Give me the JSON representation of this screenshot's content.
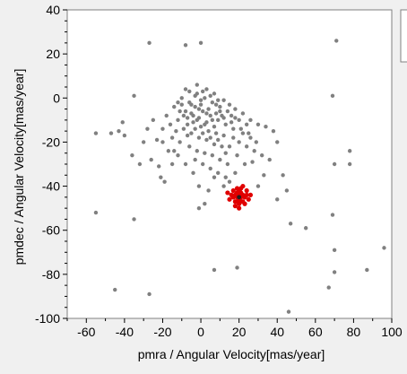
{
  "chart_data": {
    "type": "scatter",
    "title": "",
    "xlabel": "pmra / Angular Velocity[mas/year]",
    "ylabel": "pmdec / Angular Velocity[mas/year]",
    "xlim": [
      -70,
      100
    ],
    "ylim": [
      -100,
      40
    ],
    "xticks": [
      -60,
      -40,
      -20,
      0,
      20,
      40,
      60,
      80,
      100
    ],
    "yticks": [
      -100,
      -80,
      -60,
      -40,
      -20,
      0,
      20,
      40
    ],
    "xtick_labels": [
      "-60",
      "-40",
      "-20",
      "0",
      "20",
      "40",
      "60",
      "80",
      "100"
    ],
    "ytick_labels": [
      "-100",
      "-80",
      "-60",
      "-40",
      "-20",
      "0",
      "20",
      "40"
    ],
    "grid": false,
    "colors": {
      "field": "#808080",
      "cluster": "#e00000",
      "cluster_center": "#202020",
      "plot_bg": "#ffffff",
      "page_bg": "#f0f0f0"
    },
    "series": [
      {
        "points": [
          [
            -27,
            25
          ],
          [
            -8,
            24
          ],
          [
            0,
            25
          ],
          [
            71,
            26
          ],
          [
            -35,
            1
          ],
          [
            -41,
            -11
          ],
          [
            -43,
            -15
          ],
          [
            -40,
            -17
          ],
          [
            -47,
            -16
          ],
          [
            -55,
            -16
          ],
          [
            -36,
            -26
          ],
          [
            -32,
            -30
          ],
          [
            -23,
            -19
          ],
          [
            -22,
            -31
          ],
          [
            -21,
            -36
          ],
          [
            -55,
            -52
          ],
          [
            -35,
            -55
          ],
          [
            -45,
            -87
          ],
          [
            -27,
            -89
          ],
          [
            7,
            -78
          ],
          [
            19,
            -77
          ],
          [
            46,
            -97
          ],
          [
            -1,
            -50
          ],
          [
            2,
            -48
          ],
          [
            27,
            -29
          ],
          [
            33,
            -35
          ],
          [
            43,
            -35
          ],
          [
            45,
            -42
          ],
          [
            40,
            -46
          ],
          [
            47,
            -57
          ],
          [
            55,
            -59
          ],
          [
            69,
            -53
          ],
          [
            70,
            -69
          ],
          [
            70,
            -79
          ],
          [
            67,
            -86
          ],
          [
            87,
            -78
          ],
          [
            96,
            -68
          ],
          [
            78,
            -30
          ],
          [
            78,
            -24
          ],
          [
            70,
            -30
          ],
          [
            69,
            1
          ],
          [
            -20,
            -20
          ],
          [
            -15,
            -18
          ],
          [
            -12,
            -10
          ],
          [
            -18,
            -8
          ],
          [
            -8,
            4
          ],
          [
            -2,
            6
          ],
          [
            3,
            4
          ],
          [
            7,
            2
          ],
          [
            12,
            -1
          ],
          [
            15,
            -3
          ],
          [
            18,
            -5
          ],
          [
            22,
            -7
          ],
          [
            26,
            -10
          ],
          [
            30,
            -12
          ],
          [
            34,
            -13
          ],
          [
            38,
            -15
          ],
          [
            -10,
            0
          ],
          [
            -6,
            -2
          ],
          [
            -3,
            -4
          ],
          [
            1,
            -6
          ],
          [
            5,
            -8
          ],
          [
            9,
            -10
          ],
          [
            13,
            -12
          ],
          [
            17,
            -14
          ],
          [
            -14,
            -4
          ],
          [
            -11,
            -6
          ],
          [
            -7,
            -9
          ],
          [
            -4,
            -11
          ],
          [
            0,
            -13
          ],
          [
            4,
            -15
          ],
          [
            8,
            -16
          ],
          [
            12,
            -17
          ],
          [
            -9,
            -14
          ],
          [
            -5,
            -16
          ],
          [
            -1,
            -18
          ],
          [
            3,
            -19
          ],
          [
            7,
            -21
          ],
          [
            11,
            -22
          ],
          [
            -6,
            -22
          ],
          [
            -2,
            -24
          ],
          [
            2,
            -25
          ],
          [
            6,
            -26
          ],
          [
            10,
            -28
          ],
          [
            14,
            -30
          ],
          [
            -3,
            -28
          ],
          [
            1,
            -30
          ],
          [
            5,
            -32
          ],
          [
            9,
            -34
          ],
          [
            13,
            -36
          ],
          [
            -16,
            -12
          ],
          [
            -13,
            -15
          ],
          [
            -20,
            -14
          ],
          [
            -17,
            -24
          ],
          [
            -12,
            -26
          ],
          [
            -8,
            -30
          ],
          [
            -4,
            -34
          ],
          [
            20,
            -20
          ],
          [
            24,
            -22
          ],
          [
            28,
            -24
          ],
          [
            32,
            -26
          ],
          [
            22,
            -16
          ],
          [
            26,
            -18
          ],
          [
            16,
            -8
          ],
          [
            20,
            -10
          ],
          [
            24,
            -12
          ],
          [
            -2,
            2
          ],
          [
            2,
            0
          ],
          [
            6,
            -2
          ],
          [
            10,
            -4
          ],
          [
            -5,
            -7
          ],
          [
            -1,
            -9
          ],
          [
            3,
            -11
          ],
          [
            7,
            -13
          ],
          [
            -8,
            -6
          ],
          [
            -12,
            -2
          ],
          [
            0,
            -3
          ],
          [
            4,
            -5
          ],
          [
            8,
            -7
          ],
          [
            -3,
            1
          ],
          [
            1,
            3
          ],
          [
            5,
            1
          ],
          [
            9,
            -1
          ],
          [
            -6,
            3
          ],
          [
            -10,
            -3
          ],
          [
            14,
            -6
          ],
          [
            18,
            -9
          ],
          [
            11,
            -8
          ],
          [
            -7,
            -12
          ],
          [
            -3,
            -14
          ],
          [
            1,
            -16
          ],
          [
            5,
            -18
          ],
          [
            15,
            -22
          ],
          [
            19,
            -26
          ],
          [
            23,
            -30
          ],
          [
            18,
            -34
          ],
          [
            12,
            -40
          ],
          [
            -1,
            -40
          ],
          [
            30,
            -40
          ],
          [
            36,
            -28
          ],
          [
            40,
            -20
          ],
          [
            -25,
            -10
          ],
          [
            -28,
            -14
          ],
          [
            -30,
            -20
          ],
          [
            -26,
            -28
          ],
          [
            -15,
            -30
          ],
          [
            4,
            -42
          ],
          [
            10,
            -6
          ],
          [
            -4,
            -8
          ],
          [
            0,
            -1
          ],
          [
            3,
            -7
          ],
          [
            -1,
            -5
          ],
          [
            6,
            -10
          ],
          [
            2,
            -12
          ],
          [
            -2,
            -10
          ],
          [
            8,
            -3
          ],
          [
            -5,
            -3
          ],
          [
            12,
            -9
          ],
          [
            16,
            -11
          ],
          [
            -9,
            -8
          ],
          [
            -7,
            -17
          ],
          [
            9,
            -19
          ],
          [
            13,
            -25
          ],
          [
            17,
            -18
          ],
          [
            21,
            -14
          ],
          [
            25,
            -16
          ],
          [
            29,
            -20
          ],
          [
            -11,
            -20
          ],
          [
            -14,
            -24
          ],
          [
            7,
            -36
          ],
          [
            15,
            -38
          ],
          [
            -19,
            -38
          ]
        ]
      },
      {
        "points": [
          [
            20,
            -44
          ],
          [
            19,
            -45
          ],
          [
            21,
            -45
          ],
          [
            18,
            -44
          ],
          [
            22,
            -44
          ],
          [
            20,
            -46
          ],
          [
            19,
            -43
          ],
          [
            21,
            -43
          ],
          [
            17,
            -45
          ],
          [
            23,
            -45
          ],
          [
            20,
            -42
          ],
          [
            20,
            -48
          ],
          [
            18,
            -47
          ],
          [
            22,
            -47
          ],
          [
            16,
            -44
          ],
          [
            24,
            -44
          ],
          [
            19,
            -41
          ],
          [
            21,
            -41
          ],
          [
            18,
            -49
          ],
          [
            23,
            -48
          ],
          [
            17,
            -42
          ],
          [
            24,
            -42
          ],
          [
            25,
            -46
          ],
          [
            15,
            -46
          ],
          [
            20,
            -50
          ],
          [
            22,
            -40
          ],
          [
            26,
            -44
          ],
          [
            14,
            -43
          ],
          [
            21,
            -47
          ],
          [
            19,
            -47
          ]
        ]
      }
    ],
    "markers": [
      {
        "x": 20,
        "y": -45
      }
    ]
  },
  "legend": {
    "visible": true,
    "placement": "top-right",
    "text": ""
  },
  "footer": {
    "text": ""
  }
}
